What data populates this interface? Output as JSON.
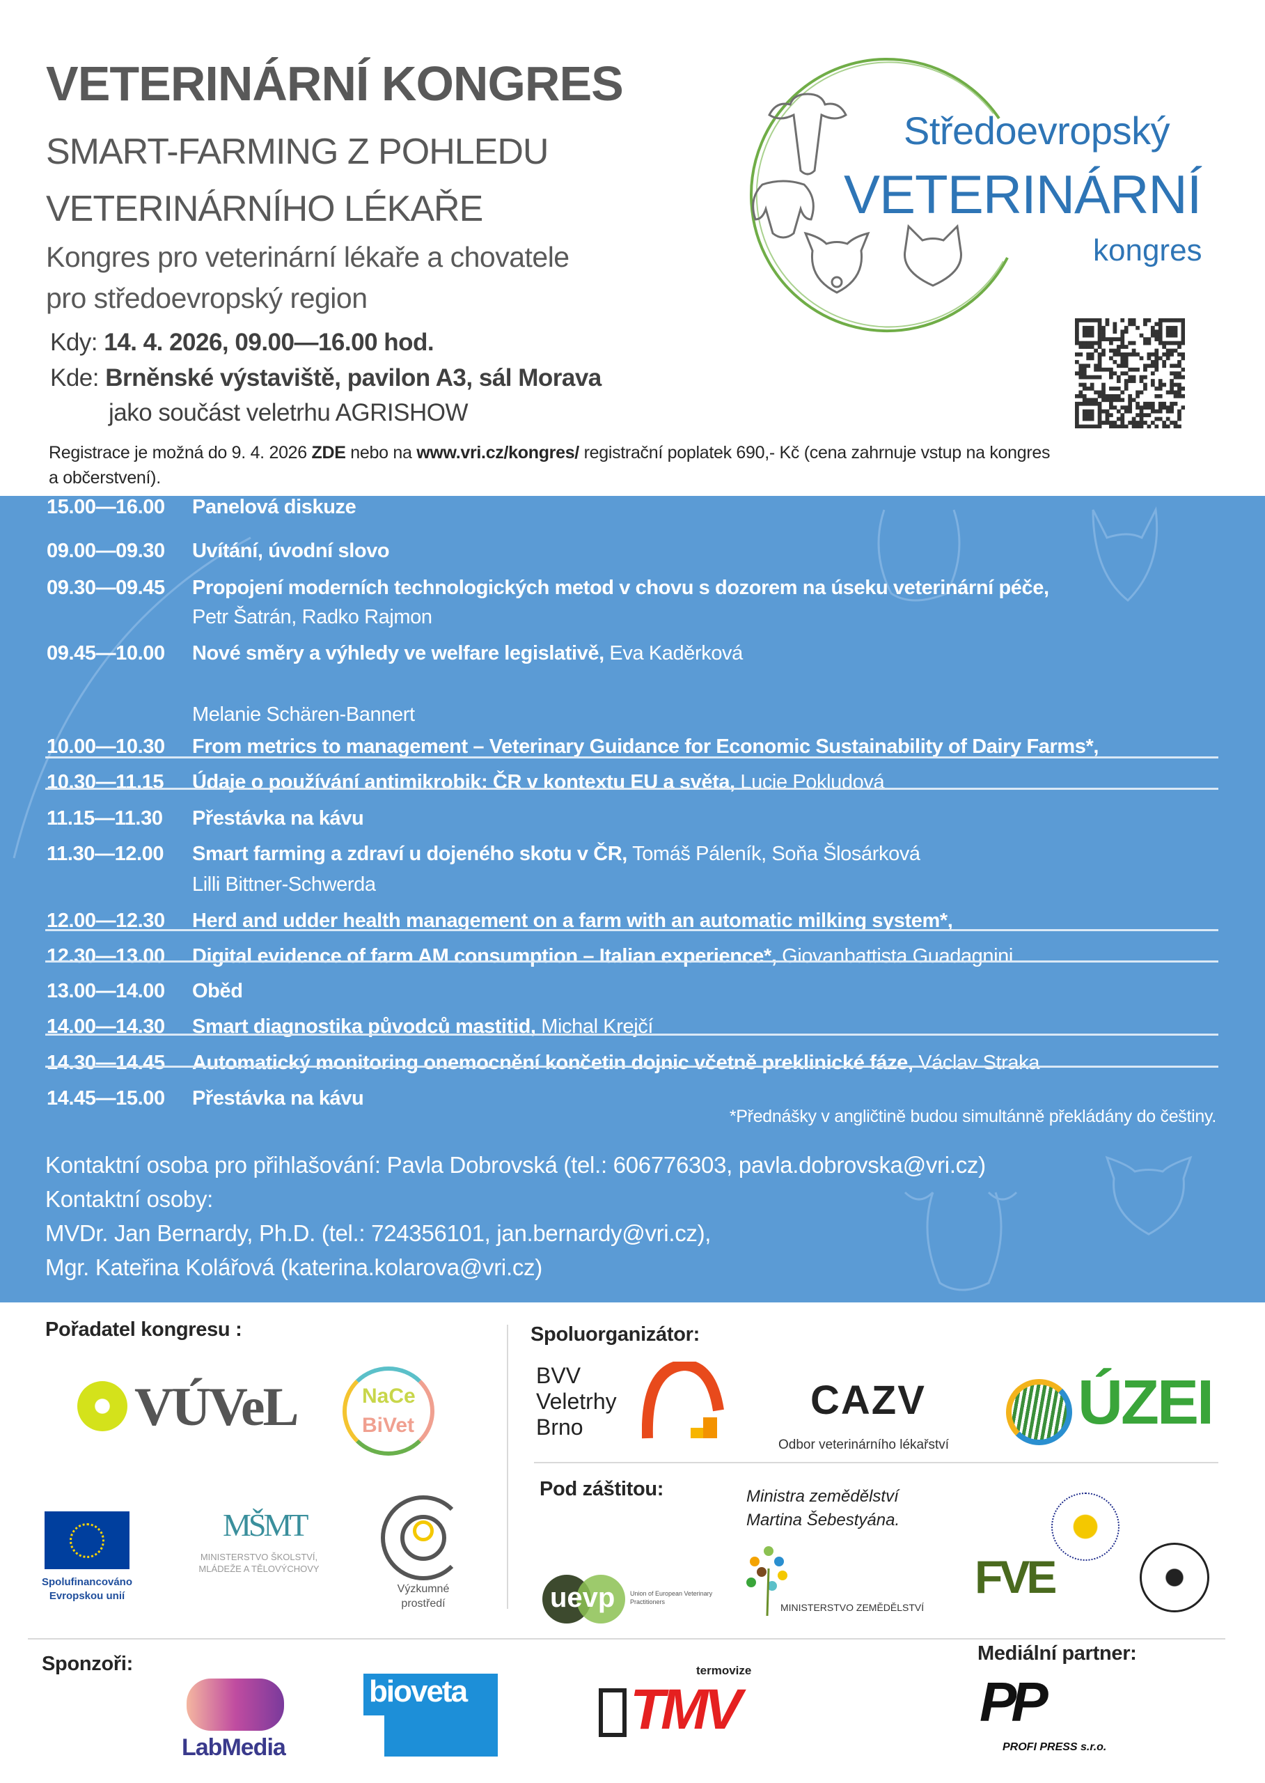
{
  "header": {
    "title": "VETERINÁRNÍ KONGRES",
    "subtitle_lines": [
      "SMART-FARMING Z POHLEDU",
      "VETERINÁRNÍHO LÉKAŘE"
    ],
    "lead_lines": [
      "Kongres pro veterinární lékaře a chovatele",
      "pro středoevropský region"
    ],
    "when_label": "Kdy:",
    "when_value": "14. 4. 2026, 09.00—16.00 hod.",
    "where_label": "Kde:",
    "where_value": "Brněnské výstaviště, pavilon A3, sál Morava",
    "where_note": "jako součást veletrhu AGRISHOW",
    "registration": {
      "text1": "Registrace je možná do 9. 4. 2026 ",
      "zde": "ZDE",
      "text2": " nebo na ",
      "url": "www.vri.cz/kongres/",
      "text3": " registrační poplatek 690,- Kč (cena zahrnuje vstup na kongres",
      "text4": "a občerstvení)."
    }
  },
  "logo": {
    "line1": "Středoevropský",
    "line2": "VETERINÁRNÍ",
    "line3": "kongres",
    "colors": {
      "text": "#2e75b6",
      "ring": "#70ad47"
    }
  },
  "program": [
    {
      "time": "09.00—09.30",
      "title": "Uvítání, úvodní slovo",
      "speaker": ""
    },
    {
      "time": "09.30—09.45",
      "title": "Propojení moderních technologických metod v chovu s dozorem na úseku veterinární péče,",
      "speaker": "",
      "speaker_line": "Petr Šatrán, Radko Rajmon"
    },
    {
      "time": "09.45—10.00",
      "title": "Nové směry a výhledy ve welfare legislativě,",
      "speaker": " Eva Kaděrková"
    },
    {
      "time": "10.00—10.30",
      "title": "From metrics to management – Veterinary Guidance for Economic Sustainability of Dairy Farms*,",
      "speaker": "",
      "speaker_line": "Melanie Schären-Bannert"
    },
    {
      "time": "10.30—11.15",
      "title": "Údaje o používání antimikrobik: ČR v kontextu EU a světa,",
      "speaker": " Lucie Pokludová"
    },
    {
      "time": "11.15—11.30",
      "title": "Přestávka na kávu",
      "speaker": ""
    },
    {
      "time": "11.30—12.00",
      "title": "Smart farming a zdraví u dojeného skotu v ČR,",
      "speaker": " Tomáš Páleník, Soňa Šlosárková"
    },
    {
      "time": "12.00—12.30",
      "title": "Herd and udder health management on a farm with an automatic milking system*,",
      "speaker": "",
      "speaker_line": "Lilli Bittner-Schwerda"
    },
    {
      "time": "12.30—13.00",
      "title": "Digital evidence of farm AM consumption – Italian experience*,",
      "speaker": " Giovanbattista Guadagnini"
    },
    {
      "time": "13.00—14.00",
      "title": "Oběd",
      "speaker": ""
    },
    {
      "time": "14.00—14.30",
      "title": "Smart diagnostika původců mastitid,",
      "speaker": " Michal Krejčí"
    },
    {
      "time": "14.30—14.45",
      "title": "Automatický monitoring onemocnění končetin dojnic včetně preklinické fáze,",
      "speaker": " Václav Straka"
    },
    {
      "time": "14.45—15.00",
      "title": "Přestávka na kávu",
      "speaker": ""
    },
    {
      "time": "15.00—16.00",
      "title": "Panelová diskuze",
      "speaker": ""
    }
  ],
  "footnote": "*Přednášky v angličtině budou simultánně překládány do češtiny.",
  "contacts": [
    "Kontaktní osoba pro přihlašování: Pavla Dobrovská (tel.: 606776303, pavla.dobrovska@vri.cz)",
    "Kontaktní osoby:",
    "MVDr. Jan Bernardy, Ph.D. (tel.: 724356101, jan.bernardy@vri.cz),",
    "Mgr. Kateřina Kolářová (katerina.kolarova@vri.cz)"
  ],
  "partners": {
    "organizer_heading": "Pořadatel kongresu :",
    "coorganizer_heading": "Spoluorganizátor:",
    "patronage_heading": "Pod záštitou:",
    "sponsors_heading": "Sponzoři:",
    "media_heading": "Mediální partner:",
    "vuvel": "VÚVeL",
    "nace1": "NaCe",
    "nace2": "BiVet",
    "eu_text": "Spolufinancováno Evropskou unií",
    "msmt": "MŠMT",
    "msmt_text": "MINISTERSTVO ŠKOLSTVÍ, MLÁDEŽE A TĚLOVÝCHOVY",
    "vyzkumne": "Výzkumné prostředí",
    "bvv_lines": [
      "BVV",
      "Veletrhy",
      "Brno"
    ],
    "cazv": "CAZV",
    "cazv_text": "Odbor veterinárního lékařství",
    "uzei": "ÚZEI",
    "minister_lines": [
      "Ministra zemědělství",
      "Martina Šebestyána."
    ],
    "uevp": "uevp",
    "uevp_text": "Union of European Veterinary Practitioners",
    "mze_text": "MINISTERSTVO ZEMĚDĚLSTVÍ",
    "fve": "FVE",
    "labmedia": "LabMedia",
    "bioveta": "bioveta",
    "tmv": "TMV",
    "tmv_small": "termovize",
    "profipress": "PROFI PRESS s.r.o."
  },
  "colors": {
    "band": "#5b9bd5",
    "title": "#595959"
  }
}
